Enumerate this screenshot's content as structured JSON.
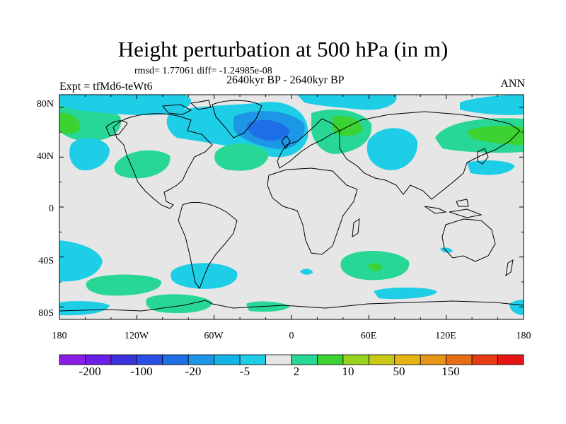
{
  "title": "Height perturbation at 500 hPa (in m)",
  "stats": "rmsd= 1.77061 diff= -1.24985e-08",
  "subtitle": "2640kyr BP - 2640kyr BP",
  "experiment": "Expt = tfMd6-teWt6",
  "season": "ANN",
  "y_axis_labels": [
    "80N",
    "40N",
    "0",
    "40S",
    "80S"
  ],
  "x_axis_labels": [
    "180",
    "120W",
    "60W",
    "0",
    "60E",
    "120E",
    "180"
  ],
  "colorbar": {
    "colors": [
      "#8a1ee6",
      "#6a1ee6",
      "#3c32dc",
      "#2850e6",
      "#1e6ee6",
      "#1e96e6",
      "#14b4e6",
      "#1ecde6",
      "#e6e6e6",
      "#28d796",
      "#3cd232",
      "#96d21e",
      "#c8c814",
      "#e6b414",
      "#e69614",
      "#e66e14",
      "#e63c14",
      "#e61414"
    ],
    "labels": [
      "-200",
      "-100",
      "-20",
      "-5",
      "2",
      "10",
      "50",
      "150"
    ]
  },
  "colors": {
    "background_field": "#e6e6e6",
    "negative_light": "#1ecde6",
    "negative_medium": "#1e96e6",
    "negative_dark": "#1e6ee6",
    "positive_light": "#28d796",
    "positive_medium": "#3cd232"
  }
}
